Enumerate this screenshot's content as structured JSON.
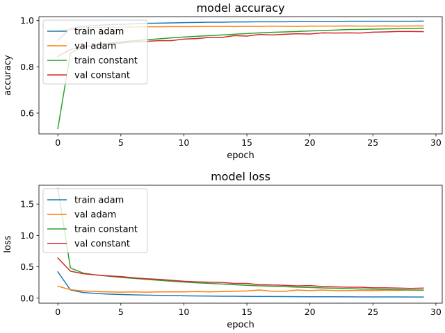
{
  "chart_data": [
    {
      "type": "line",
      "title": "model accuracy",
      "xlabel": "epoch",
      "ylabel": "accuracy",
      "xlim": [
        -1.5,
        30.5
      ],
      "ylim": [
        0.51,
        1.017
      ],
      "xticks": [
        0,
        5,
        10,
        15,
        20,
        25,
        30
      ],
      "yticks": [
        0.6,
        0.8,
        1.0
      ],
      "xtick_labels": [
        "0",
        "5",
        "10",
        "15",
        "20",
        "25",
        "30"
      ],
      "ytick_labels": [
        "0.6",
        "0.8",
        "1.0"
      ],
      "grid": false,
      "legend_position": "top-left",
      "x": [
        0,
        1,
        2,
        3,
        4,
        5,
        6,
        7,
        8,
        9,
        10,
        11,
        12,
        13,
        14,
        15,
        16,
        17,
        18,
        19,
        20,
        21,
        22,
        23,
        24,
        25,
        26,
        27,
        28,
        29
      ],
      "series": [
        {
          "name": "train adam",
          "color": "#1f77b4",
          "values": [
            0.915,
            0.965,
            0.975,
            0.979,
            0.982,
            0.984,
            0.986,
            0.988,
            0.989,
            0.99,
            0.991,
            0.992,
            0.993,
            0.993,
            0.994,
            0.994,
            0.995,
            0.995,
            0.995,
            0.996,
            0.996,
            0.996,
            0.996,
            0.997,
            0.997,
            0.997,
            0.997,
            0.997,
            0.997,
            0.998
          ]
        },
        {
          "name": "val adam",
          "color": "#ff7f0e",
          "values": [
            0.955,
            0.962,
            0.968,
            0.97,
            0.971,
            0.972,
            0.972,
            0.973,
            0.973,
            0.974,
            0.974,
            0.974,
            0.975,
            0.975,
            0.974,
            0.975,
            0.975,
            0.976,
            0.975,
            0.975,
            0.976,
            0.976,
            0.976,
            0.977,
            0.976,
            0.976,
            0.977,
            0.976,
            0.977,
            0.977
          ]
        },
        {
          "name": "train constant",
          "color": "#2ca02c",
          "values": [
            0.533,
            0.86,
            0.885,
            0.895,
            0.902,
            0.908,
            0.913,
            0.917,
            0.921,
            0.925,
            0.929,
            0.932,
            0.935,
            0.938,
            0.941,
            0.944,
            0.947,
            0.949,
            0.951,
            0.953,
            0.955,
            0.957,
            0.959,
            0.961,
            0.962,
            0.963,
            0.964,
            0.965,
            0.966,
            0.967
          ]
        },
        {
          "name": "val constant",
          "color": "#d62728",
          "values": [
            0.845,
            0.875,
            0.887,
            0.892,
            0.897,
            0.903,
            0.907,
            0.91,
            0.913,
            0.913,
            0.92,
            0.922,
            0.927,
            0.927,
            0.935,
            0.933,
            0.94,
            0.938,
            0.941,
            0.943,
            0.942,
            0.947,
            0.946,
            0.947,
            0.946,
            0.95,
            0.951,
            0.953,
            0.953,
            0.952
          ]
        }
      ]
    },
    {
      "type": "line",
      "title": "model loss",
      "xlabel": "epoch",
      "ylabel": "loss",
      "xlim": [
        -1.5,
        30.5
      ],
      "ylim": [
        -0.08,
        1.8
      ],
      "xticks": [
        0,
        5,
        10,
        15,
        20,
        25,
        30
      ],
      "yticks": [
        0.0,
        0.5,
        1.0,
        1.5
      ],
      "xtick_labels": [
        "0",
        "5",
        "10",
        "15",
        "20",
        "25",
        "30"
      ],
      "ytick_labels": [
        "0.0",
        "0.5",
        "1.0",
        "1.5"
      ],
      "grid": false,
      "legend_position": "top-left",
      "x": [
        0,
        1,
        2,
        3,
        4,
        5,
        6,
        7,
        8,
        9,
        10,
        11,
        12,
        13,
        14,
        15,
        16,
        17,
        18,
        19,
        20,
        21,
        22,
        23,
        24,
        25,
        26,
        27,
        28,
        29
      ],
      "series": [
        {
          "name": "train adam",
          "color": "#1f77b4",
          "values": [
            0.42,
            0.13,
            0.09,
            0.075,
            0.065,
            0.058,
            0.052,
            0.048,
            0.044,
            0.041,
            0.038,
            0.035,
            0.033,
            0.031,
            0.03,
            0.028,
            0.027,
            0.026,
            0.025,
            0.024,
            0.023,
            0.022,
            0.022,
            0.021,
            0.02,
            0.02,
            0.019,
            0.019,
            0.018,
            0.018
          ]
        },
        {
          "name": "val adam",
          "color": "#ff7f0e",
          "values": [
            0.19,
            0.135,
            0.115,
            0.105,
            0.1,
            0.095,
            0.1,
            0.095,
            0.1,
            0.1,
            0.1,
            0.105,
            0.1,
            0.105,
            0.11,
            0.115,
            0.13,
            0.11,
            0.11,
            0.13,
            0.12,
            0.13,
            0.12,
            0.12,
            0.125,
            0.12,
            0.125,
            0.125,
            0.13,
            0.13
          ]
        },
        {
          "name": "train constant",
          "color": "#2ca02c",
          "values": [
            1.75,
            0.48,
            0.4,
            0.37,
            0.35,
            0.33,
            0.315,
            0.3,
            0.285,
            0.27,
            0.258,
            0.245,
            0.235,
            0.225,
            0.215,
            0.205,
            0.197,
            0.19,
            0.183,
            0.176,
            0.17,
            0.164,
            0.158,
            0.152,
            0.147,
            0.142,
            0.138,
            0.134,
            0.13,
            0.126
          ]
        },
        {
          "name": "val constant",
          "color": "#d62728",
          "values": [
            0.64,
            0.43,
            0.39,
            0.37,
            0.355,
            0.345,
            0.325,
            0.31,
            0.3,
            0.285,
            0.27,
            0.26,
            0.255,
            0.25,
            0.235,
            0.235,
            0.215,
            0.21,
            0.205,
            0.195,
            0.2,
            0.185,
            0.18,
            0.175,
            0.175,
            0.165,
            0.165,
            0.16,
            0.155,
            0.16
          ]
        }
      ]
    }
  ]
}
